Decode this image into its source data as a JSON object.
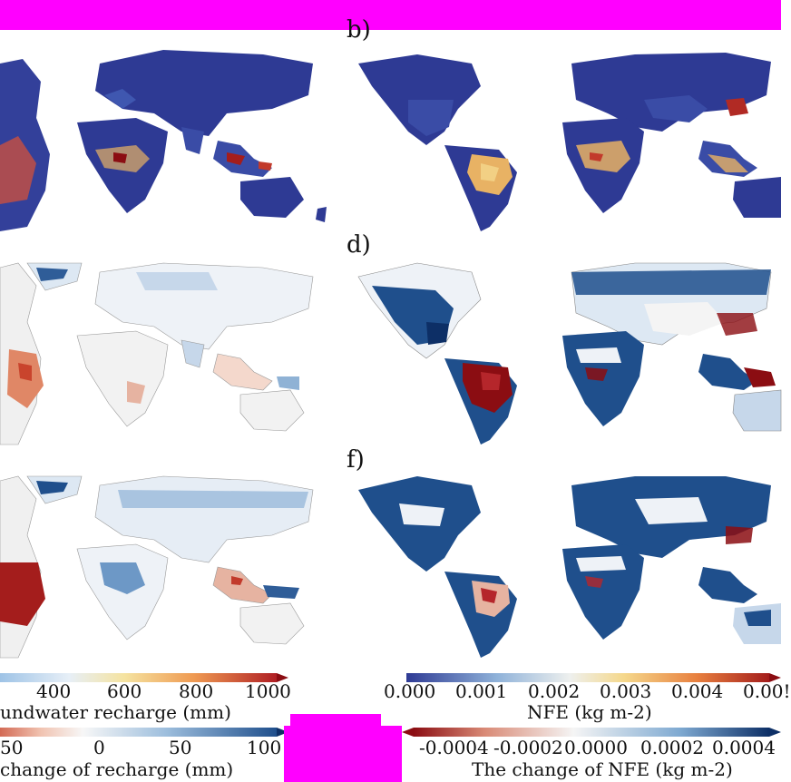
{
  "panel_labels": [
    "b)",
    "d)",
    "f)"
  ],
  "colorbars": {
    "recharge": {
      "ticks": [
        "400",
        "600",
        "800",
        "1000"
      ],
      "title": "undwater recharge (mm)"
    },
    "nfe": {
      "ticks": [
        "0.000",
        "0.001",
        "0.002",
        "0.003",
        "0.004",
        "0.00!"
      ],
      "title": "NFE (kg m-2)"
    },
    "recharge_change": {
      "ticks": [
        "50",
        "0",
        "50",
        "100"
      ],
      "title": "change of recharge (mm)"
    },
    "nfe_change": {
      "ticks": [
        "-0.0004",
        "-0.0002",
        "0.0000",
        "0.0002",
        "0.0004"
      ],
      "title": "The change of NFE (kg m-2)"
    }
  },
  "colors": {
    "magenta": "#ff00ff",
    "deep_blue": "#2e3a94",
    "dark_red": "#8b0d12",
    "light_gray": "#ececec"
  }
}
